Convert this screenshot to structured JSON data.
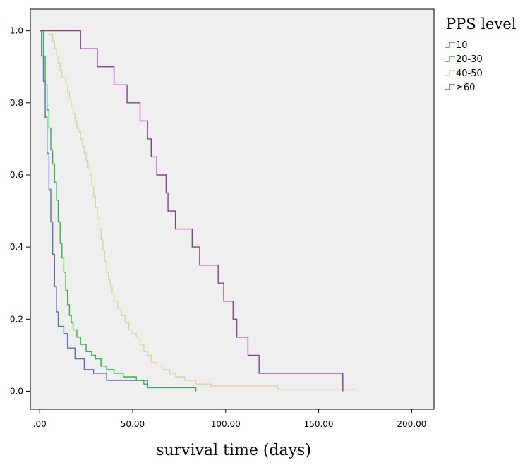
{
  "chart_data": {
    "type": "line",
    "subtype": "kaplan-meier-step",
    "title": "",
    "xlabel": "survival time (days)",
    "ylabel": "",
    "xlim": [
      -5,
      212
    ],
    "ylim": [
      -0.05,
      1.06
    ],
    "xticks": [
      0,
      50,
      100,
      150,
      200
    ],
    "xtick_labels": [
      ".00",
      "50.00",
      "100.00",
      "150.00",
      "200.00"
    ],
    "yticks": [
      0,
      0.2,
      0.4,
      0.6,
      0.8,
      1.0
    ],
    "ytick_labels": [
      "0.0",
      "0.2",
      "0.4",
      "0.6",
      "0.8",
      "1.0"
    ],
    "background": "#efefef",
    "grid": false,
    "legend": {
      "title": "PPS level",
      "placement": "top-right-outside"
    },
    "series": [
      {
        "name": "10",
        "color": "#5b6fb5",
        "points": [
          [
            0,
            1.0
          ],
          [
            1,
            0.93
          ],
          [
            2,
            0.86
          ],
          [
            3,
            0.76
          ],
          [
            4,
            0.66
          ],
          [
            5,
            0.56
          ],
          [
            6,
            0.47
          ],
          [
            7,
            0.38
          ],
          [
            8,
            0.29
          ],
          [
            9,
            0.22
          ],
          [
            10,
            0.18
          ],
          [
            13,
            0.16
          ],
          [
            15,
            0.12
          ],
          [
            19,
            0.12
          ],
          [
            19,
            0.09
          ],
          [
            24,
            0.09
          ],
          [
            24,
            0.06
          ],
          [
            29,
            0.06
          ],
          [
            29,
            0.05
          ],
          [
            36,
            0.05
          ],
          [
            36,
            0.03
          ],
          [
            58,
            0.03
          ],
          [
            58,
            0.01
          ]
        ]
      },
      {
        "name": "20-30",
        "color": "#35b04d",
        "points": [
          [
            0,
            1.0
          ],
          [
            2,
            0.93
          ],
          [
            3,
            0.85
          ],
          [
            4,
            0.78
          ],
          [
            5,
            0.73
          ],
          [
            6,
            0.67
          ],
          [
            7,
            0.63
          ],
          [
            8,
            0.58
          ],
          [
            9,
            0.53
          ],
          [
            10,
            0.47
          ],
          [
            11,
            0.41
          ],
          [
            12,
            0.37
          ],
          [
            13,
            0.33
          ],
          [
            14,
            0.28
          ],
          [
            15,
            0.24
          ],
          [
            16,
            0.21
          ],
          [
            17,
            0.19
          ],
          [
            18,
            0.17
          ],
          [
            20,
            0.15
          ],
          [
            22,
            0.13
          ],
          [
            25,
            0.11
          ],
          [
            28,
            0.1
          ],
          [
            30,
            0.09
          ],
          [
            33,
            0.07
          ],
          [
            36,
            0.06
          ],
          [
            40,
            0.05
          ],
          [
            45,
            0.04
          ],
          [
            52,
            0.03
          ],
          [
            56,
            0.02
          ],
          [
            58,
            0.01
          ],
          [
            84,
            0.01
          ],
          [
            84,
            0.0
          ]
        ]
      },
      {
        "name": "40-50",
        "color": "#d9d6a3",
        "points": [
          [
            0,
            1.0
          ],
          [
            5,
            0.99
          ],
          [
            7,
            0.97
          ],
          [
            8,
            0.95
          ],
          [
            9,
            0.93
          ],
          [
            10,
            0.91
          ],
          [
            11,
            0.89
          ],
          [
            12,
            0.87
          ],
          [
            14,
            0.85
          ],
          [
            15,
            0.83
          ],
          [
            16,
            0.81
          ],
          [
            17,
            0.79
          ],
          [
            18,
            0.77
          ],
          [
            19,
            0.75
          ],
          [
            20,
            0.73
          ],
          [
            21,
            0.72
          ],
          [
            22,
            0.7
          ],
          [
            23,
            0.68
          ],
          [
            24,
            0.66
          ],
          [
            25,
            0.64
          ],
          [
            26,
            0.62
          ],
          [
            27,
            0.6
          ],
          [
            28,
            0.57
          ],
          [
            29,
            0.54
          ],
          [
            30,
            0.51
          ],
          [
            31,
            0.48
          ],
          [
            32,
            0.45
          ],
          [
            33,
            0.42
          ],
          [
            34,
            0.39
          ],
          [
            35,
            0.36
          ],
          [
            36,
            0.33
          ],
          [
            37,
            0.31
          ],
          [
            38,
            0.29
          ],
          [
            39,
            0.27
          ],
          [
            40,
            0.25
          ],
          [
            42,
            0.23
          ],
          [
            44,
            0.21
          ],
          [
            46,
            0.19
          ],
          [
            48,
            0.17
          ],
          [
            50,
            0.16
          ],
          [
            52,
            0.15
          ],
          [
            54,
            0.13
          ],
          [
            56,
            0.11
          ],
          [
            58,
            0.1
          ],
          [
            60,
            0.08
          ],
          [
            63,
            0.07
          ],
          [
            66,
            0.06
          ],
          [
            70,
            0.05
          ],
          [
            73,
            0.04
          ],
          [
            78,
            0.03
          ],
          [
            84,
            0.02
          ],
          [
            92,
            0.015
          ],
          [
            128,
            0.01
          ],
          [
            128,
            0.005
          ],
          [
            170,
            0.005
          ]
        ]
      },
      {
        "name": "≥60",
        "color": "#8c3f8e",
        "points": [
          [
            0,
            1.0
          ],
          [
            22,
            1.0
          ],
          [
            22,
            0.95
          ],
          [
            31,
            0.95
          ],
          [
            31,
            0.9
          ],
          [
            40,
            0.9
          ],
          [
            40,
            0.85
          ],
          [
            47,
            0.85
          ],
          [
            47,
            0.8
          ],
          [
            54,
            0.8
          ],
          [
            54,
            0.75
          ],
          [
            58,
            0.75
          ],
          [
            58,
            0.7
          ],
          [
            60,
            0.7
          ],
          [
            60,
            0.65
          ],
          [
            63,
            0.65
          ],
          [
            63,
            0.6
          ],
          [
            68,
            0.6
          ],
          [
            68,
            0.55
          ],
          [
            69,
            0.55
          ],
          [
            69,
            0.5
          ],
          [
            73,
            0.5
          ],
          [
            73,
            0.45
          ],
          [
            82,
            0.45
          ],
          [
            82,
            0.4
          ],
          [
            86,
            0.4
          ],
          [
            86,
            0.35
          ],
          [
            96,
            0.35
          ],
          [
            96,
            0.3
          ],
          [
            99,
            0.3
          ],
          [
            99,
            0.25
          ],
          [
            104,
            0.25
          ],
          [
            104,
            0.2
          ],
          [
            106,
            0.2
          ],
          [
            106,
            0.15
          ],
          [
            112,
            0.15
          ],
          [
            112,
            0.1
          ],
          [
            118,
            0.1
          ],
          [
            118,
            0.05
          ],
          [
            163,
            0.05
          ],
          [
            163,
            0.0
          ]
        ]
      }
    ]
  }
}
